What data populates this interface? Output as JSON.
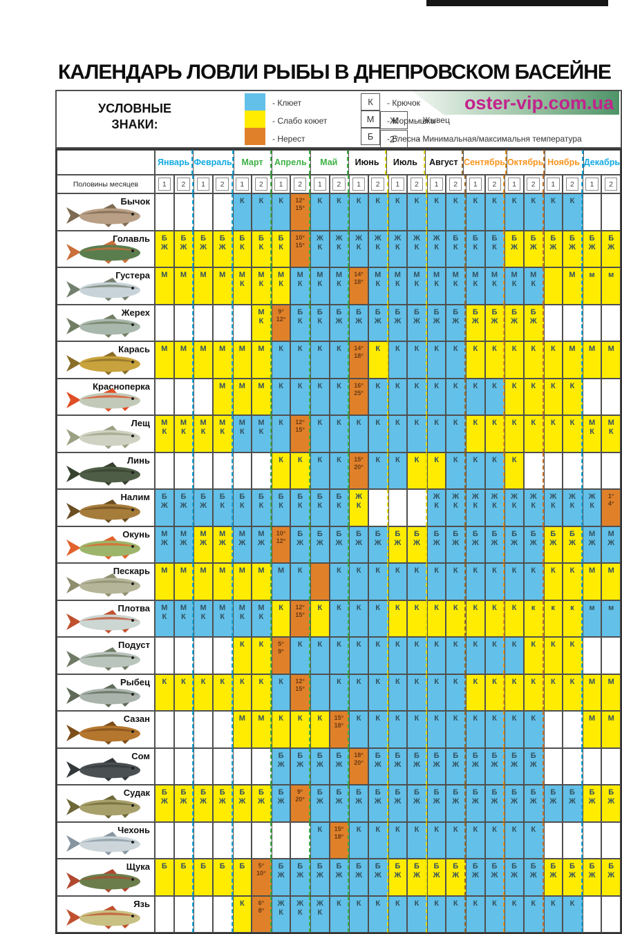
{
  "title": "КАЛЕНДАРЬ ЛОВЛИ РЫБЫ В ДНЕПРОВСКОМ БАСЕЙНЕ",
  "logo": "oster-vip.com.ua",
  "legend": {
    "heading": "УСЛОВНЫЕ\nЗНАКИ:",
    "colors": [
      {
        "color": "#63c0e8",
        "label": "- Клюет"
      },
      {
        "color": "#ffec00",
        "label": "- Слабо коюет"
      },
      {
        "color": "#e0812a",
        "label": "- Нерест"
      }
    ],
    "symbols": [
      {
        "symbol": "К",
        "label": "- Крючок"
      },
      {
        "symbol": "М",
        "label": "- Мормышка"
      },
      {
        "symbol": "Б",
        "label": "- Блесна"
      }
    ],
    "symbols2": [
      {
        "symbol": "Ж",
        "label": "- Жывец"
      },
      {
        "symbol": "2°",
        "label": "- Минимальная/максимальня температура"
      }
    ]
  },
  "table": {
    "halves_label": "Половины месяцев",
    "half_labels": [
      "1",
      "2"
    ],
    "months": [
      {
        "name": "Январь",
        "color": "#12a9e0",
        "sep": "#12a9e0"
      },
      {
        "name": "Февраль",
        "color": "#12a9e0",
        "sep": "#12a9e0"
      },
      {
        "name": "Март",
        "color": "#3cb043",
        "sep": "#3cb043"
      },
      {
        "name": "Апрель",
        "color": "#3cb043",
        "sep": "#3cb043"
      },
      {
        "name": "Май",
        "color": "#3cb043",
        "sep": "#3cb043"
      },
      {
        "name": "Июнь",
        "color": "#111111",
        "sep": "#e3d800"
      },
      {
        "name": "Июль",
        "color": "#111111",
        "sep": "#e3d800"
      },
      {
        "name": "Август",
        "color": "#111111",
        "sep": "#9a6a2a"
      },
      {
        "name": "Сентябрь",
        "color": "#f7941d",
        "sep": "#e8921c"
      },
      {
        "name": "Октябрь",
        "color": "#f7941d",
        "sep": "#c8732a"
      },
      {
        "name": "Ноябрь",
        "color": "#f7941d",
        "sep": "#12a9e0"
      },
      {
        "name": "Декабрь",
        "color": "#12a9e0",
        "sep": "#12a9e0"
      }
    ],
    "rows": [
      {
        "fish": "Бычок",
        "body": "#b89f85",
        "fin": "#7d6a52",
        "cells": [
          "w|",
          "w|",
          "w|",
          "w|",
          "b|К",
          "b|К",
          "b|К",
          "o|12°\n15°",
          "b|К",
          "b|К",
          "b|К",
          "b|К",
          "b|К",
          "b|К",
          "b|К",
          "b|К",
          "b|К",
          "b|К",
          "b|К",
          "b|К",
          "b|К",
          "b|К",
          "w|",
          "w|"
        ]
      },
      {
        "fish": "Голавль",
        "body": "#5a7d4e",
        "fin": "#c96f3a",
        "cells": [
          "y|Б\nЖ",
          "y|Б\nЖ",
          "y|Б\nЖ",
          "y|Б\nЖ",
          "y|Б\nК",
          "y|Б\nК",
          "y|Б\nК",
          "o|10°\n15°",
          "b|Ж\nК",
          "b|Ж\nК",
          "b|Ж\nК",
          "b|Ж\nК",
          "b|Ж\nК",
          "b|Ж\nК",
          "b|Ж\nК",
          "b|Б\nК",
          "b|Б\nК",
          "b|Б\nК",
          "y|Б\nЖ",
          "y|Б\nЖ",
          "y|Б\nЖ",
          "y|Б\nЖ",
          "y|Б\nЖ",
          "y|Б\nЖ"
        ]
      },
      {
        "fish": "Густера",
        "body": "#c7d3d8",
        "fin": "#74806e",
        "cells": [
          "y|М",
          "y|М",
          "y|М",
          "y|М",
          "y|М\nК",
          "y|М\nК",
          "y|М\nК",
          "b|М\nК",
          "b|М\nК",
          "b|М\nК",
          "o|14°\n18°",
          "b|М\nК",
          "b|М\nК",
          "b|М\nК",
          "b|М\nК",
          "b|М\nК",
          "b|М\nК",
          "b|М\nК",
          "b|М\nК",
          "b|М\nК",
          "y|",
          "y|М",
          "y|м",
          "y|м"
        ]
      },
      {
        "fish": "Жерех",
        "body": "#a9b8ad",
        "fin": "#707d62",
        "cells": [
          "w|",
          "w|",
          "w|",
          "w|",
          "w|",
          "y|М\nК",
          "o|9°\n12°",
          "b|Б\nК",
          "b|Б\nК",
          "b|Б\nЖ",
          "b|Б\nЖ",
          "b|Б\nЖ",
          "b|Б\nЖ",
          "b|Б\nЖ",
          "b|Б\nЖ",
          "b|Б\nЖ",
          "y|Б\nЖ",
          "y|Б\nЖ",
          "y|Б\nЖ",
          "y|Б\nЖ",
          "w|",
          "w|",
          "w|",
          "w|"
        ]
      },
      {
        "fish": "Карась",
        "body": "#c8a23c",
        "fin": "#8a6d28",
        "cells": [
          "y|М",
          "y|М",
          "y|М",
          "y|М",
          "y|М",
          "y|М",
          "b|К",
          "b|К",
          "b|К",
          "b|К",
          "o|14°\n18°",
          "y|К",
          "b|К",
          "b|К",
          "b|К",
          "b|К",
          "y|К",
          "y|К",
          "y|К",
          "y|К",
          "y|К",
          "y|М",
          "y|М",
          "y|М"
        ]
      },
      {
        "fish": "Красноперка",
        "body": "#c2c9b8",
        "fin": "#e04e26",
        "cells": [
          "w|",
          "w|",
          "w|",
          "y|М",
          "y|М",
          "y|М",
          "b|К",
          "b|К",
          "b|К",
          "b|К",
          "o|16°\n25°",
          "b|К",
          "b|К",
          "b|К",
          "b|К",
          "b|К",
          "b|К",
          "b|К",
          "y|К",
          "y|К",
          "y|К",
          "y|К",
          "w|",
          "w|"
        ]
      },
      {
        "fish": "Лещ",
        "body": "#cfd2c2",
        "fin": "#9aa183",
        "cells": [
          "y|М\nК",
          "y|М\nК",
          "y|М\nК",
          "y|М\nК",
          "b|М\nК",
          "b|М\nК",
          "b|К",
          "o|12°\n15°",
          "b|К",
          "b|К",
          "b|К",
          "b|К",
          "b|К",
          "b|К",
          "b|К",
          "b|К",
          "y|К",
          "y|К",
          "y|К",
          "y|К",
          "y|К",
          "y|К",
          "y|М\nК",
          "y|М\nК"
        ]
      },
      {
        "fish": "Линь",
        "body": "#4e5e46",
        "fin": "#37422f",
        "cells": [
          "w|",
          "w|",
          "w|",
          "w|",
          "w|",
          "w|",
          "y|К",
          "y|К",
          "b|К",
          "b|К",
          "o|15°\n20°",
          "b|К",
          "b|К",
          "y|К",
          "y|К",
          "b|К",
          "b|К",
          "b|К",
          "y|К",
          "w|",
          "w|",
          "w|",
          "w|",
          "w|"
        ]
      },
      {
        "fish": "Налим",
        "body": "#a67c3b",
        "fin": "#6b4e22",
        "cells": [
          "b|Б\nЖ",
          "b|Б\nЖ",
          "b|Б\nЖ",
          "b|Б\nК",
          "b|Б\nК",
          "b|Б\nК",
          "b|Б\nК",
          "b|Б\nК",
          "b|Б\nК",
          "b|Б\nК",
          "y|Ж\nК",
          "w|",
          "w|",
          "w|",
          "b|Ж\nК",
          "b|Ж\nК",
          "b|Ж\nК",
          "b|Ж\nК",
          "b|Ж\nК",
          "b|Ж\nК",
          "b|Ж\nК",
          "b|Ж\nК",
          "b|Ж\nК",
          "o|1°\n4°"
        ]
      },
      {
        "fish": "Окунь",
        "body": "#9db56a",
        "fin": "#e2622d",
        "cells": [
          "b|М\nЖ",
          "b|М\nЖ",
          "y|М\nЖ",
          "y|М\nЖ",
          "b|М\nЖ",
          "b|М\nЖ",
          "o|10°\n12°",
          "b|Б\nЖ",
          "b|Б\nЖ",
          "b|Б\nЖ",
          "b|Б\nЖ",
          "b|Б\nЖ",
          "y|Б\nЖ",
          "y|Б\nЖ",
          "b|Б\nЖ",
          "b|Б\nЖ",
          "b|Б\nЖ",
          "b|Б\nЖ",
          "b|Б\nЖ",
          "b|Б\nЖ",
          "y|Б\nЖ",
          "y|Б\nЖ",
          "b|М\nЖ",
          "b|М\nЖ"
        ]
      },
      {
        "fish": "Пескарь",
        "body": "#b5b59a",
        "fin": "#8e8e6e",
        "cells": [
          "y|М",
          "y|М",
          "y|М",
          "y|М",
          "y|М",
          "y|М",
          "b|М",
          "b|К",
          "o|",
          "b|К",
          "b|К",
          "b|К",
          "b|К",
          "b|К",
          "b|К",
          "b|К",
          "b|К",
          "b|К",
          "b|К",
          "b|К",
          "y|К",
          "y|К",
          "y|М",
          "y|М"
        ]
      },
      {
        "fish": "Плотва",
        "body": "#ccd6d2",
        "fin": "#c0502e",
        "cells": [
          "b|М\nК",
          "b|М\nК",
          "b|М\nК",
          "b|М\nК",
          "b|М\nК",
          "b|М\nК",
          "y|К",
          "o|12°\n15°",
          "y|К",
          "b|К",
          "b|К",
          "b|К",
          "y|К",
          "y|К",
          "y|К",
          "y|К",
          "y|К",
          "y|К",
          "y|К",
          "y|к",
          "y|к",
          "y|к",
          "b|м",
          "b|м"
        ]
      },
      {
        "fish": "Подуст",
        "body": "#b9c4bd",
        "fin": "#6f7a64",
        "cells": [
          "w|",
          "w|",
          "w|",
          "w|",
          "y|К",
          "y|К",
          "o|5°\n9°",
          "b|К",
          "b|К",
          "b|К",
          "b|К",
          "b|К",
          "b|К",
          "b|К",
          "b|К",
          "b|К",
          "b|К",
          "b|К",
          "b|К",
          "y|К",
          "y|К",
          "y|К",
          "w|",
          "w|"
        ]
      },
      {
        "fish": "Рыбец",
        "body": "#aab4ad",
        "fin": "#5f6a58",
        "cells": [
          "y|К",
          "y|К",
          "y|К",
          "y|К",
          "y|К",
          "y|К",
          "b|К",
          "o|12°\n15°",
          "b|",
          "b|К",
          "b|К",
          "b|К",
          "b|К",
          "b|К",
          "b|К",
          "b|К",
          "y|К",
          "y|К",
          "y|К",
          "y|К",
          "y|К",
          "y|К",
          "y|М",
          "y|М"
        ]
      },
      {
        "fish": "Сазан",
        "body": "#b5762e",
        "fin": "#7d4e1a",
        "cells": [
          "w|",
          "w|",
          "w|",
          "w|",
          "y|М",
          "y|М",
          "y|К",
          "y|К",
          "y|К",
          "o|15°\n18°",
          "b|К",
          "b|К",
          "b|К",
          "b|К",
          "b|К",
          "b|К",
          "b|К",
          "b|К",
          "b|К",
          "b|К",
          "w|",
          "w|",
          "y|М",
          "y|М"
        ]
      },
      {
        "fish": "Сом",
        "body": "#4a4f52",
        "fin": "#33383b",
        "cells": [
          "w|",
          "w|",
          "w|",
          "w|",
          "w|",
          "w|",
          "b|Б\nЖ",
          "b|Б\nЖ",
          "b|Б\nЖ",
          "b|Б\nЖ",
          "o|18°\n20°",
          "b|Б\nЖ",
          "b|Б\nЖ",
          "b|Б\nЖ",
          "b|Б\nЖ",
          "b|Б\nЖ",
          "b|Б\nЖ",
          "b|Б\nЖ",
          "b|Б\nЖ",
          "b|Б\nЖ",
          "w|",
          "w|",
          "w|",
          "w|"
        ]
      },
      {
        "fish": "Судак",
        "body": "#a8a06a",
        "fin": "#6e6838",
        "cells": [
          "y|Б\nЖ",
          "y|Б\nЖ",
          "y|Б\nЖ",
          "y|Б\nЖ",
          "y|Б\nЖ",
          "y|Б\nЖ",
          "b|Б\nЖ",
          "o|9°\n20°",
          "b|Б\nЖ",
          "b|Б\nЖ",
          "b|Б\nЖ",
          "b|Б\nЖ",
          "b|Б\nЖ",
          "b|Б\nЖ",
          "b|Б\nЖ",
          "b|Б\nЖ",
          "b|Б\nЖ",
          "b|Б\nЖ",
          "b|Б\nЖ",
          "b|Б\nЖ",
          "b|Б\nЖ",
          "b|Б\nЖ",
          "y|Б\nЖ",
          "y|Б\nЖ"
        ]
      },
      {
        "fish": "Чехонь",
        "body": "#ccd6da",
        "fin": "#8795a0",
        "cells": [
          "w|",
          "w|",
          "w|",
          "w|",
          "w|",
          "w|",
          "w|",
          "w|",
          "b|К",
          "o|15°\n18°",
          "b|К",
          "b|К",
          "b|К",
          "b|К",
          "b|К",
          "b|К",
          "b|К",
          "b|К",
          "b|К",
          "b|К",
          "w|",
          "w|",
          "w|",
          "w|"
        ]
      },
      {
        "fish": "Щука",
        "body": "#6b7d4a",
        "fin": "#b0482f",
        "cells": [
          "y|Б",
          "y|Б",
          "y|Б",
          "y|Б",
          "y|Б",
          "o|5°\n10°",
          "b|Б\nЖ",
          "b|Б\nЖ",
          "b|Б\nЖ",
          "b|Б\nЖ",
          "b|Б\nЖ",
          "b|Б\nЖ",
          "y|Б\nЖ",
          "y|Б\nЖ",
          "y|Б\nЖ",
          "y|Б\nЖ",
          "b|Б\nЖ",
          "b|Б\nЖ",
          "b|Б\nЖ",
          "b|Б\nЖ",
          "y|Б\nЖ",
          "y|Б\nЖ",
          "y|Б\nЖ",
          "y|Б\nЖ"
        ]
      },
      {
        "fish": "Язь",
        "body": "#c9c184",
        "fin": "#c0502e",
        "cells": [
          "w|",
          "w|",
          "w|",
          "w|",
          "y|К",
          "o|6°\n8°",
          "b|Ж\nК",
          "b|Ж\nК",
          "b|Ж\nК",
          "b|К",
          "b|К",
          "b|К",
          "b|К",
          "b|К",
          "b|К",
          "b|К",
          "b|К",
          "b|К",
          "b|К",
          "b|К",
          "b|К",
          "b|К",
          "w|",
          "w|"
        ]
      }
    ]
  }
}
